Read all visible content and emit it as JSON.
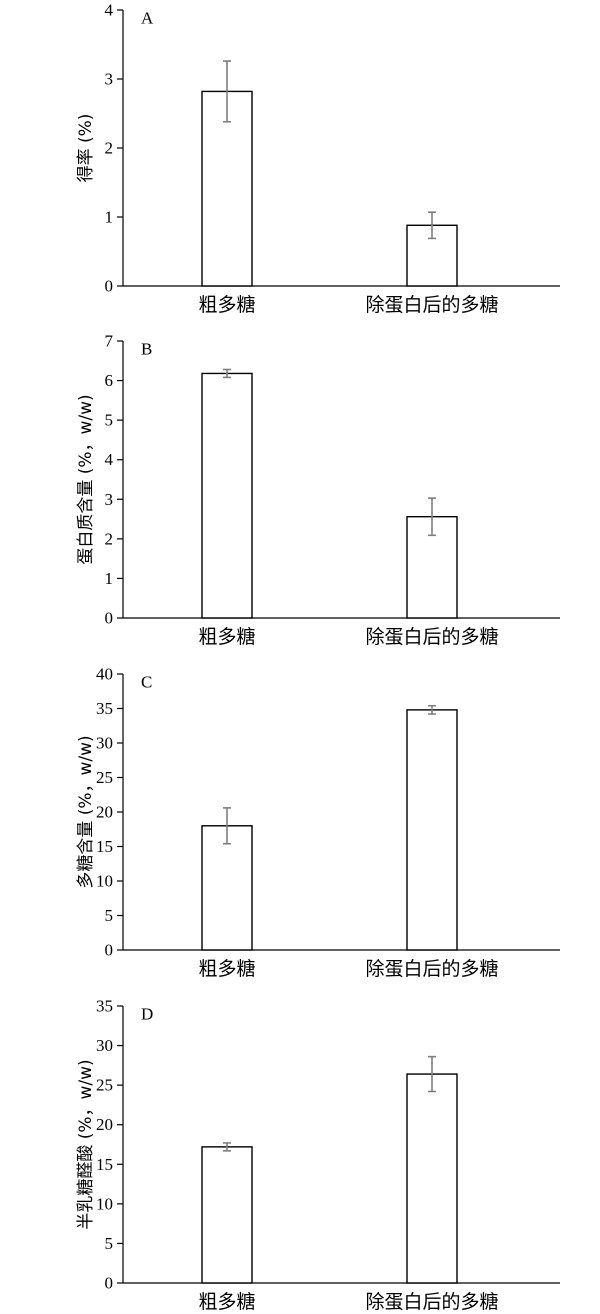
{
  "chart_data": [
    {
      "panel": "A",
      "type": "bar",
      "ylabel": "得率 (%)",
      "categories": [
        "粗多糖",
        "除蛋白后的多糖"
      ],
      "values": [
        2.82,
        0.88
      ],
      "errors": [
        0.44,
        0.19
      ],
      "ylim": [
        0,
        4
      ],
      "yticks": [
        0,
        1,
        2,
        3,
        4
      ]
    },
    {
      "panel": "B",
      "type": "bar",
      "ylabel": "蛋白质含量 (%，w/w)",
      "categories": [
        "粗多糖",
        "除蛋白后的多糖"
      ],
      "values": [
        6.18,
        2.56
      ],
      "errors": [
        0.1,
        0.47
      ],
      "ylim": [
        0,
        7
      ],
      "yticks": [
        0,
        1,
        2,
        3,
        4,
        5,
        6,
        7
      ]
    },
    {
      "panel": "C",
      "type": "bar",
      "ylabel": "多糖含量 (%，w/w)",
      "categories": [
        "粗多糖",
        "除蛋白后的多糖"
      ],
      "values": [
        18.0,
        34.8
      ],
      "errors": [
        2.6,
        0.6
      ],
      "ylim": [
        0,
        40
      ],
      "yticks": [
        0,
        5,
        10,
        15,
        20,
        25,
        30,
        35,
        40
      ]
    },
    {
      "panel": "D",
      "type": "bar",
      "ylabel": "半乳糖醛酸 (%，w/w)",
      "categories": [
        "粗多糖",
        "除蛋白后的多糖"
      ],
      "values": [
        17.2,
        26.4
      ],
      "errors": [
        0.5,
        2.2
      ],
      "ylim": [
        0,
        35
      ],
      "yticks": [
        0,
        5,
        10,
        15,
        20,
        25,
        30,
        35
      ]
    }
  ]
}
